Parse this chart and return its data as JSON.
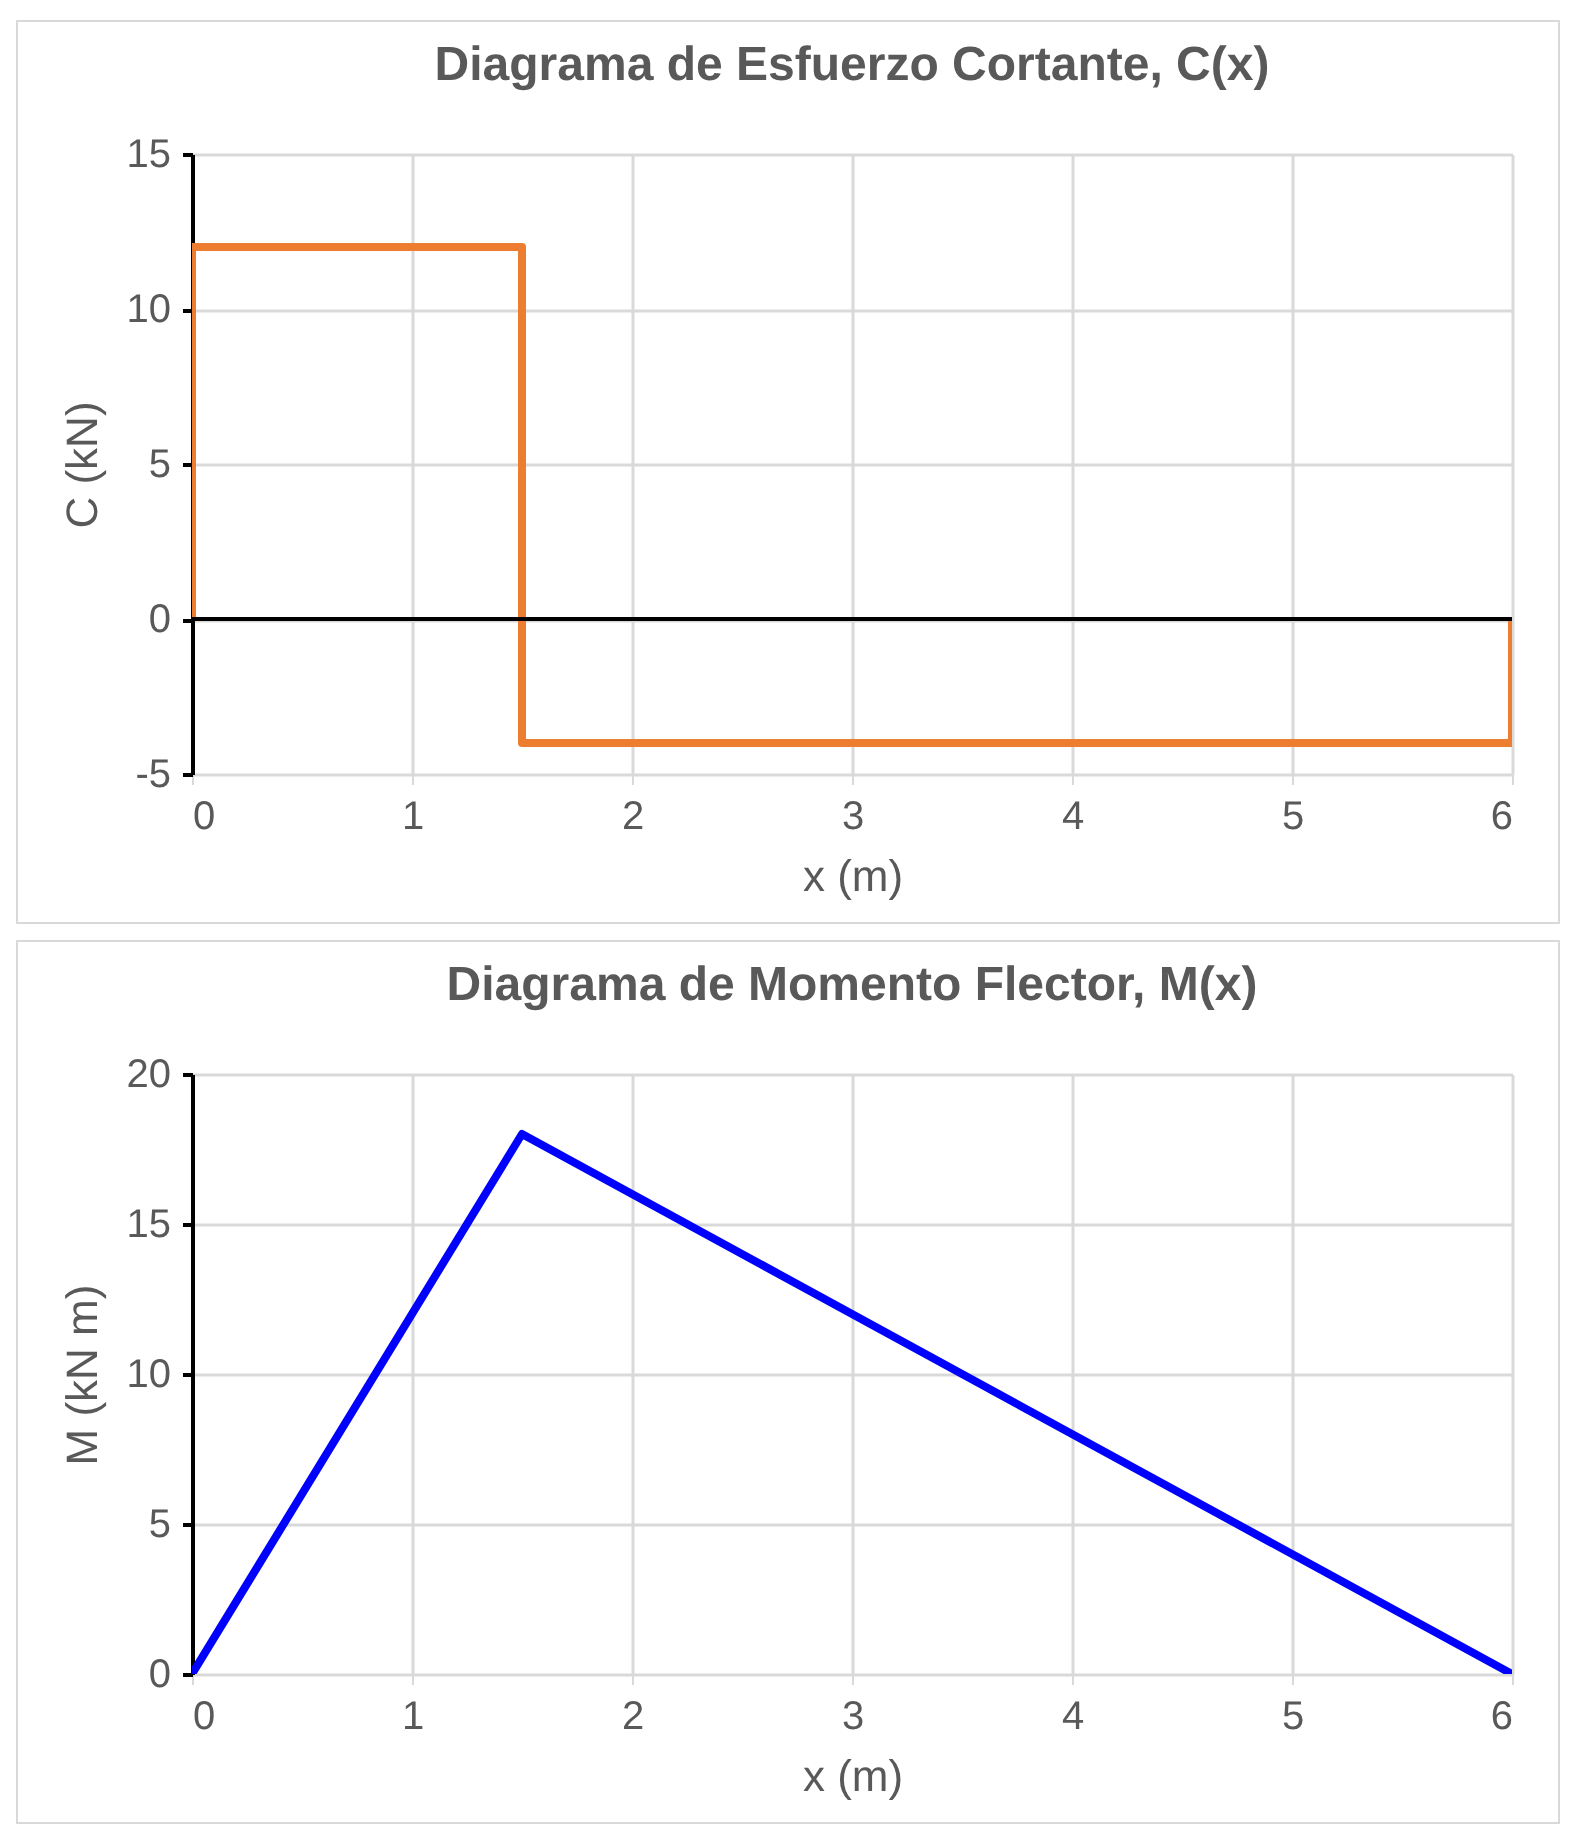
{
  "chart_data": [
    {
      "type": "line",
      "title": "Diagrama de Esfuerzo Cortante, C(x)",
      "xlabel": "x (m)",
      "ylabel": "C (kN)",
      "series": [
        {
          "color": "#ed7d31",
          "x": [
            0,
            0,
            1.5,
            1.5,
            6,
            6
          ],
          "values": [
            0,
            12,
            12,
            -4,
            -4,
            0
          ]
        }
      ],
      "xlim": [
        0,
        6
      ],
      "xticks": [
        0,
        1,
        2,
        3,
        4,
        5,
        6
      ],
      "ylim": [
        -5,
        15
      ],
      "yticks": [
        -5,
        0,
        5,
        10,
        15
      ],
      "grid": true,
      "ref_lines": [
        {
          "axis": "y",
          "value": 0,
          "color": "#000000"
        }
      ]
    },
    {
      "type": "line",
      "title": "Diagrama de Momento Flector, M(x)",
      "xlabel": "x (m)",
      "ylabel": "M (kN m)",
      "series": [
        {
          "color": "#0000ff",
          "x": [
            0,
            1.5,
            6
          ],
          "values": [
            0,
            18,
            0
          ]
        }
      ],
      "xlim": [
        0,
        6
      ],
      "xticks": [
        0,
        1,
        2,
        3,
        4,
        5,
        6
      ],
      "ylim": [
        0,
        20
      ],
      "yticks": [
        0,
        5,
        10,
        15,
        20
      ],
      "grid": true
    }
  ]
}
